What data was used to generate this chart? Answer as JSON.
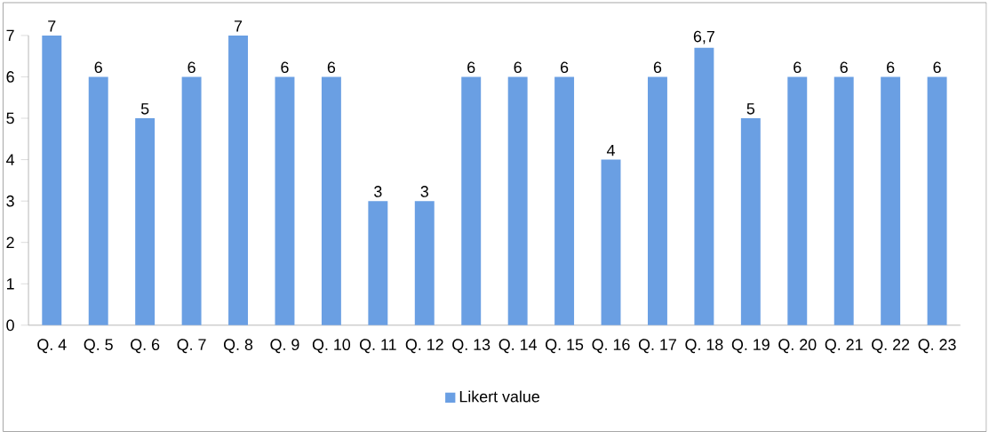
{
  "chart_data": {
    "type": "bar",
    "categories": [
      "Q. 4",
      "Q. 5",
      "Q. 6",
      "Q. 7",
      "Q. 8",
      "Q. 9",
      "Q. 10",
      "Q. 11",
      "Q. 12",
      "Q. 13",
      "Q. 14",
      "Q. 15",
      "Q. 16",
      "Q. 17",
      "Q. 18",
      "Q. 19",
      "Q. 20",
      "Q. 21",
      "Q. 22",
      "Q. 23"
    ],
    "series": [
      {
        "name": "Likert value",
        "color": "#6a9fe3",
        "values": [
          7,
          6,
          5,
          6,
          7,
          6,
          6,
          3,
          3,
          6,
          6,
          6,
          4,
          6,
          6.7,
          5,
          6,
          6,
          6,
          6
        ],
        "value_labels": [
          "7",
          "6",
          "5",
          "6",
          "7",
          "6",
          "6",
          "3",
          "3",
          "6",
          "6",
          "6",
          "4",
          "6",
          "6,7",
          "5",
          "6",
          "6",
          "6",
          "6"
        ]
      }
    ],
    "ylim": [
      0,
      7
    ],
    "yticks": [
      0,
      1,
      2,
      3,
      4,
      5,
      6,
      7
    ],
    "grid": false,
    "legend": "bottom"
  }
}
